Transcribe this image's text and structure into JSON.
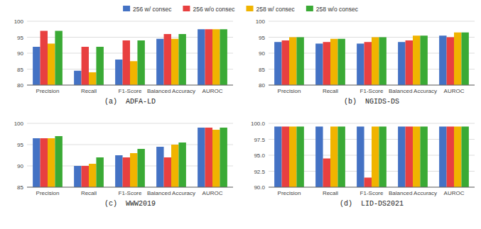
{
  "chart_data": [
    {
      "type": "bar",
      "title": "(a)  ADFA-LD",
      "legend": "top",
      "grid": true,
      "categories": [
        "Precision",
        "Recall",
        "F1-Score",
        "Balanced Accuracy",
        "AUROC"
      ],
      "ylim": [
        80,
        100
      ],
      "yticks": [
        80,
        85,
        90,
        95,
        100
      ],
      "series": [
        {
          "name": "256 w/ consec",
          "color": "#4472c4",
          "values": [
            92.0,
            84.5,
            88.0,
            94.5,
            97.5
          ]
        },
        {
          "name": "256 w/o consec",
          "color": "#e84040",
          "values": [
            97.0,
            92.0,
            94.0,
            96.0,
            97.5
          ]
        },
        {
          "name": "258 w/ consec",
          "color": "#f0b400",
          "values": [
            93.0,
            84.0,
            87.5,
            94.5,
            97.5
          ]
        },
        {
          "name": "258 w/o consec",
          "color": "#3aaa35",
          "values": [
            97.0,
            92.0,
            94.0,
            96.0,
            97.5
          ]
        }
      ]
    },
    {
      "type": "bar",
      "title": "(b)  NGIDS-DS",
      "grid": true,
      "categories": [
        "Precision",
        "Recall",
        "F1-Score",
        "Balanced Accuracy",
        "AUROC"
      ],
      "ylim": [
        80,
        100
      ],
      "yticks": [
        80,
        85,
        90,
        95,
        100
      ],
      "series": [
        {
          "color": "#4472c4",
          "values": [
            93.5,
            93.0,
            93.0,
            93.5,
            95.5
          ]
        },
        {
          "color": "#e84040",
          "values": [
            94.0,
            93.5,
            93.5,
            94.0,
            95.0
          ]
        },
        {
          "color": "#f0b400",
          "values": [
            95.0,
            94.5,
            95.0,
            95.5,
            96.5
          ]
        },
        {
          "color": "#3aaa35",
          "values": [
            95.0,
            94.5,
            95.0,
            95.5,
            96.5
          ]
        }
      ]
    },
    {
      "type": "bar",
      "title": "(c)  WWW2019",
      "grid": true,
      "categories": [
        "Precision",
        "Recall",
        "F1-Score",
        "Balanced Accuracy",
        "AUROC"
      ],
      "ylim": [
        85,
        100
      ],
      "yticks": [
        85,
        90,
        95,
        100
      ],
      "series": [
        {
          "color": "#4472c4",
          "values": [
            96.5,
            90.0,
            92.5,
            94.5,
            99.0
          ]
        },
        {
          "color": "#e84040",
          "values": [
            96.5,
            90.0,
            92.0,
            92.0,
            99.0
          ]
        },
        {
          "color": "#f0b400",
          "values": [
            96.5,
            90.5,
            93.0,
            95.0,
            98.5
          ]
        },
        {
          "color": "#3aaa35",
          "values": [
            97.0,
            92.0,
            94.0,
            95.5,
            99.0
          ]
        }
      ]
    },
    {
      "type": "bar",
      "title": "(d)  LID-DS2021",
      "grid": true,
      "categories": [
        "Precision",
        "Recall",
        "F1-Score",
        "Balanced Accuracy",
        "AUROC"
      ],
      "ylim": [
        90.0,
        100.0
      ],
      "yticks": [
        {
          "value": 90.0,
          "label": "90.0"
        },
        {
          "value": 92.5,
          "label": "92.5"
        },
        {
          "value": 95.0,
          "label": "95.0"
        },
        {
          "value": 97.5,
          "label": "97.5"
        },
        {
          "value": 100.0,
          "label": "100.0"
        }
      ],
      "series": [
        {
          "color": "#4472c4",
          "values": [
            99.5,
            99.5,
            99.5,
            99.5,
            99.5
          ]
        },
        {
          "color": "#e84040",
          "values": [
            99.5,
            94.5,
            91.5,
            99.5,
            99.5
          ]
        },
        {
          "color": "#f0b400",
          "values": [
            99.5,
            99.5,
            99.5,
            99.5,
            99.5
          ]
        },
        {
          "color": "#3aaa35",
          "values": [
            99.5,
            99.5,
            99.5,
            99.5,
            99.5
          ]
        }
      ]
    }
  ]
}
